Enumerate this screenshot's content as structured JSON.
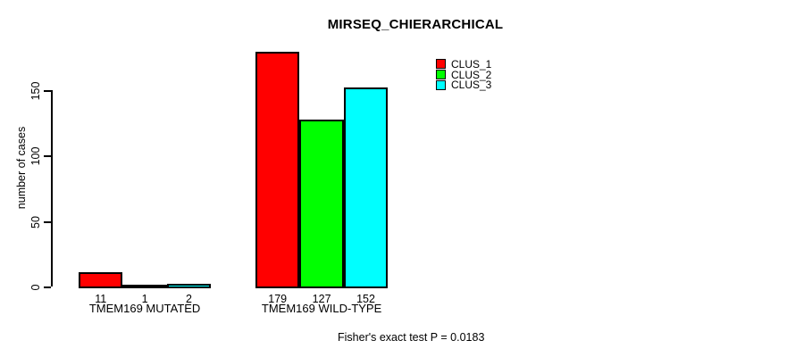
{
  "title": "MIRSEQ_CHIERARCHICAL",
  "y_axis": {
    "label": "number of cases",
    "ticks": [
      0,
      50,
      100,
      150
    ]
  },
  "footer": "Fisher's exact test P = 0.0183",
  "chart_data": {
    "type": "bar",
    "title": "MIRSEQ_CHIERARCHICAL",
    "categories": [
      "TMEM169 MUTATED",
      "TMEM169 WILD-TYPE"
    ],
    "series": [
      {
        "name": "CLUS_1",
        "color": "#FF0000",
        "values": [
          11,
          179
        ]
      },
      {
        "name": "CLUS_2",
        "color": "#00FF00",
        "values": [
          1,
          127
        ]
      },
      {
        "name": "CLUS_3",
        "color": "#00FFFF",
        "values": [
          2,
          152
        ]
      }
    ],
    "xlabel": "",
    "ylabel": "number of cases",
    "ylim": [
      0,
      185
    ],
    "yticks": [
      0,
      50,
      100,
      150
    ],
    "grid": false,
    "legend_position": "top-right",
    "show_values_under_bars": true,
    "bar_border_color": "#000000",
    "annotation": "Fisher's exact test P = 0.0183"
  }
}
